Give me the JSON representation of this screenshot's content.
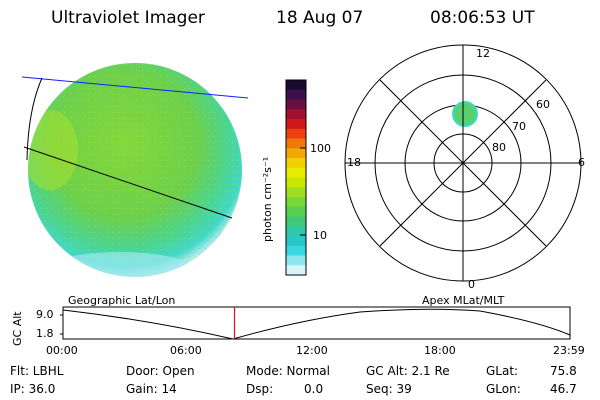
{
  "header": {
    "instrument": "Ultraviolet Imager",
    "date": "18 Aug 07",
    "time": "08:06:53 UT"
  },
  "colorbar": {
    "label": "photon cm⁻²s⁻¹",
    "ticks": [
      "100",
      "10"
    ],
    "colors": [
      "#1a0a33",
      "#3a0f4a",
      "#6a1040",
      "#a01030",
      "#d01818",
      "#ee4010",
      "#f07808",
      "#f0a800",
      "#f0d000",
      "#e8ec00",
      "#c8e800",
      "#a0e020",
      "#78d838",
      "#58d050",
      "#40c878",
      "#30c8a8",
      "#28c8c8",
      "#38d8e0",
      "#8ce8ee",
      "#d8f4f6"
    ]
  },
  "polar": {
    "mlt_labels": [
      "12",
      "18",
      "6",
      "0"
    ],
    "lat_labels": [
      "60",
      "70",
      "80"
    ]
  },
  "timeline": {
    "ylabel": "GC Alt",
    "yticks": [
      "9.0",
      "1.8"
    ],
    "left_title": "Geographic Lat/Lon",
    "right_title": "Apex MLat/MLT",
    "xticks": [
      "00:00",
      "06:00",
      "12:00",
      "18:00",
      "23:59"
    ],
    "marker_time": "08:06:53"
  },
  "info": {
    "flt": "Flt: LBHL",
    "door": "Door: Open",
    "mode": "Mode: Normal",
    "gcalt": "GC Alt: 2.1 Re",
    "glat_label": "GLat:",
    "glat_value": "75.8",
    "ip": "IP: 36.0",
    "gain": "Gain: 14",
    "dsp_label": "Dsp:",
    "dsp_value": "0.0",
    "seq": "Seq: 39",
    "glon_label": "GLon:",
    "glon_value": "46.7"
  },
  "colors": {
    "earth_main": "#8ed840",
    "earth_edge": "#40d8c0",
    "grid_line": "#000000",
    "track_line": "#1020ff",
    "marker": "#e01010"
  }
}
